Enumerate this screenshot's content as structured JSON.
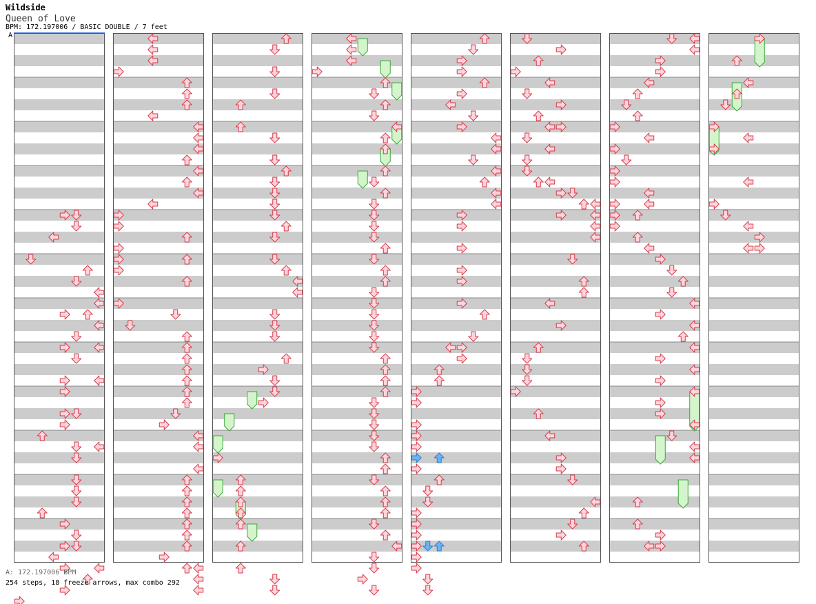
{
  "header": {
    "title": "Wildside",
    "subtitle": "Queen of Love",
    "meta": "BPM: 172.197006 / BASIC DOUBLE / 7 feet",
    "bpm_marker": "A"
  },
  "footer": {
    "bpm_line": "A: 172.197006 BPM",
    "stats": "254 steps, 18 freeze arrows, max combo 292"
  },
  "chart_data": {
    "type": "step-chart",
    "mode": "BASIC DOUBLE",
    "bpm": 172.197006,
    "difficulty_feet": 7,
    "lanes": [
      "P1-left",
      "P1-down",
      "P1-up",
      "P1-right",
      "P2-left",
      "P2-down",
      "P2-up",
      "P2-right"
    ],
    "columns": 8,
    "measures_per_column": 12,
    "rows_per_measure": 4,
    "steps": 254,
    "freeze_arrows": 18,
    "max_combo": 292,
    "colors": {
      "note_fill": "#ffd5dc",
      "note_stroke": "#d43a4a",
      "freeze_fill": "#d4f5cc",
      "freeze_stroke": "#3aa83a",
      "blue_fill": "#6cb3f0",
      "blue_stroke": "#2f7ec8",
      "stripe": "#cccccc",
      "border": "#555555"
    },
    "notes": [
      [
        [
          16,
          4
        ],
        [
          16,
          5
        ],
        [
          17,
          5
        ],
        [
          18,
          3
        ],
        [
          20,
          1
        ],
        [
          21,
          6
        ],
        [
          22,
          5
        ],
        [
          23,
          7
        ],
        [
          24,
          7
        ],
        [
          25,
          4
        ],
        [
          25,
          6
        ],
        [
          26,
          7
        ],
        [
          27,
          5
        ],
        [
          28,
          4
        ],
        [
          28,
          7
        ],
        [
          29,
          5
        ],
        [
          31,
          4
        ],
        [
          31,
          7
        ],
        [
          32,
          4
        ],
        [
          34,
          4
        ],
        [
          34,
          5
        ],
        [
          35,
          4
        ],
        [
          36,
          2
        ],
        [
          37,
          5
        ],
        [
          37,
          7
        ],
        [
          38,
          5
        ],
        [
          40,
          5
        ],
        [
          41,
          5
        ],
        [
          42,
          5
        ],
        [
          43,
          2
        ],
        [
          44,
          4
        ],
        [
          45,
          5
        ],
        [
          46,
          4
        ],
        [
          46,
          5
        ],
        [
          47,
          3
        ],
        [
          48,
          4
        ],
        [
          48,
          7
        ],
        [
          49,
          6
        ],
        [
          50,
          4
        ],
        [
          51,
          0
        ]
      ],
      [
        [
          0,
          3
        ],
        [
          1,
          3
        ],
        [
          2,
          3
        ],
        [
          3,
          0
        ],
        [
          4,
          6
        ],
        [
          5,
          6
        ],
        [
          6,
          6
        ],
        [
          7,
          3
        ],
        [
          8,
          7
        ],
        [
          9,
          7
        ],
        [
          10,
          7
        ],
        [
          11,
          6
        ],
        [
          12,
          7
        ],
        [
          13,
          6
        ],
        [
          14,
          7
        ],
        [
          15,
          3
        ],
        [
          16,
          0
        ],
        [
          17,
          0
        ],
        [
          18,
          6
        ],
        [
          19,
          0
        ],
        [
          20,
          0
        ],
        [
          20,
          6
        ],
        [
          21,
          0
        ],
        [
          22,
          6
        ],
        [
          24,
          0
        ],
        [
          25,
          5
        ],
        [
          26,
          1
        ],
        [
          27,
          6
        ],
        [
          28,
          6
        ],
        [
          29,
          6
        ],
        [
          30,
          6
        ],
        [
          31,
          6
        ],
        [
          32,
          6
        ],
        [
          33,
          6
        ],
        [
          34,
          5
        ],
        [
          35,
          4
        ],
        [
          36,
          7
        ],
        [
          37,
          7
        ],
        [
          39,
          7
        ],
        [
          40,
          6
        ],
        [
          41,
          6
        ],
        [
          42,
          6
        ],
        [
          43,
          6
        ],
        [
          44,
          6
        ],
        [
          45,
          6
        ],
        [
          46,
          6
        ],
        [
          47,
          4
        ],
        [
          48,
          6
        ],
        [
          48,
          7
        ],
        [
          49,
          7
        ],
        [
          50,
          7
        ]
      ],
      [
        [
          0,
          6
        ],
        [
          1,
          5
        ],
        [
          3,
          5
        ],
        [
          5,
          5
        ],
        [
          6,
          2
        ],
        [
          8,
          2
        ],
        [
          9,
          5
        ],
        [
          11,
          5
        ],
        [
          12,
          6
        ],
        [
          13,
          5
        ],
        [
          14,
          5
        ],
        [
          15,
          5
        ],
        [
          16,
          5
        ],
        [
          17,
          6
        ],
        [
          18,
          5
        ],
        [
          20,
          5
        ],
        [
          21,
          6
        ],
        [
          22,
          7
        ],
        [
          23,
          7
        ],
        [
          25,
          5
        ],
        [
          26,
          5
        ],
        [
          27,
          5
        ],
        [
          29,
          6
        ],
        [
          30,
          4
        ],
        [
          31,
          5
        ],
        [
          32,
          5
        ],
        [
          33,
          4
        ],
        [
          38,
          0
        ],
        [
          40,
          2
        ],
        [
          41,
          2
        ],
        [
          42,
          2
        ],
        [
          43,
          2
        ],
        [
          44,
          2
        ],
        [
          46,
          2
        ],
        [
          48,
          2
        ],
        [
          49,
          5
        ],
        [
          50,
          5
        ]
      ],
      [
        [
          0,
          3
        ],
        [
          1,
          3
        ],
        [
          2,
          3
        ],
        [
          3,
          0
        ],
        [
          4,
          6
        ],
        [
          5,
          5
        ],
        [
          6,
          6
        ],
        [
          7,
          5
        ],
        [
          8,
          7
        ],
        [
          9,
          6
        ],
        [
          10,
          6
        ],
        [
          12,
          6
        ],
        [
          13,
          5
        ],
        [
          14,
          6
        ],
        [
          15,
          5
        ],
        [
          16,
          5
        ],
        [
          17,
          5
        ],
        [
          18,
          5
        ],
        [
          19,
          6
        ],
        [
          20,
          5
        ],
        [
          21,
          6
        ],
        [
          22,
          6
        ],
        [
          23,
          5
        ],
        [
          24,
          5
        ],
        [
          25,
          5
        ],
        [
          26,
          5
        ],
        [
          27,
          5
        ],
        [
          28,
          5
        ],
        [
          29,
          6
        ],
        [
          30,
          6
        ],
        [
          31,
          6
        ],
        [
          32,
          6
        ],
        [
          33,
          5
        ],
        [
          34,
          5
        ],
        [
          35,
          5
        ],
        [
          36,
          5
        ],
        [
          37,
          5
        ],
        [
          38,
          6
        ],
        [
          39,
          6
        ],
        [
          40,
          5
        ],
        [
          41,
          6
        ],
        [
          42,
          6
        ],
        [
          43,
          6
        ],
        [
          44,
          5
        ],
        [
          45,
          6
        ],
        [
          46,
          7
        ],
        [
          47,
          5
        ],
        [
          48,
          5
        ],
        [
          49,
          4
        ],
        [
          50,
          5
        ]
      ],
      [
        [
          0,
          6
        ],
        [
          1,
          5
        ],
        [
          2,
          4
        ],
        [
          3,
          4
        ],
        [
          4,
          6
        ],
        [
          5,
          4
        ],
        [
          6,
          3
        ],
        [
          7,
          5
        ],
        [
          8,
          4
        ],
        [
          9,
          7
        ],
        [
          10,
          7
        ],
        [
          11,
          5
        ],
        [
          12,
          7
        ],
        [
          13,
          6
        ],
        [
          14,
          7
        ],
        [
          15,
          7
        ],
        [
          16,
          4
        ],
        [
          17,
          4
        ],
        [
          19,
          4
        ],
        [
          21,
          4
        ],
        [
          22,
          4
        ],
        [
          24,
          4
        ],
        [
          25,
          6
        ],
        [
          27,
          5
        ],
        [
          28,
          3
        ],
        [
          28,
          4
        ],
        [
          29,
          4
        ],
        [
          30,
          2
        ],
        [
          31,
          2
        ],
        [
          32,
          0
        ],
        [
          33,
          0
        ],
        [
          35,
          0
        ],
        [
          36,
          0
        ],
        [
          37,
          0
        ],
        [
          39,
          0
        ],
        [
          40,
          2
        ],
        [
          41,
          1
        ],
        [
          42,
          1
        ],
        [
          43,
          0
        ],
        [
          44,
          0
        ],
        [
          45,
          0
        ],
        [
          46,
          0
        ],
        [
          47,
          0
        ],
        [
          48,
          0
        ],
        [
          49,
          1
        ],
        [
          50,
          1
        ]
      ],
      [
        [
          0,
          1
        ],
        [
          1,
          4
        ],
        [
          2,
          2
        ],
        [
          3,
          0
        ],
        [
          4,
          3
        ],
        [
          5,
          1
        ],
        [
          6,
          4
        ],
        [
          7,
          2
        ],
        [
          8,
          3
        ],
        [
          8,
          4
        ],
        [
          9,
          1
        ],
        [
          10,
          3
        ],
        [
          11,
          1
        ],
        [
          12,
          1
        ],
        [
          13,
          2
        ],
        [
          13,
          3
        ],
        [
          14,
          4
        ],
        [
          14,
          5
        ],
        [
          15,
          6
        ],
        [
          15,
          7
        ],
        [
          16,
          4
        ],
        [
          16,
          7
        ],
        [
          17,
          7
        ],
        [
          18,
          7
        ],
        [
          20,
          5
        ],
        [
          22,
          6
        ],
        [
          23,
          6
        ],
        [
          24,
          3
        ],
        [
          26,
          4
        ],
        [
          28,
          2
        ],
        [
          29,
          1
        ],
        [
          30,
          1
        ],
        [
          31,
          1
        ],
        [
          32,
          0
        ],
        [
          34,
          2
        ],
        [
          36,
          3
        ],
        [
          38,
          4
        ],
        [
          39,
          4
        ],
        [
          40,
          5
        ],
        [
          42,
          7
        ],
        [
          43,
          6
        ],
        [
          44,
          5
        ],
        [
          45,
          4
        ],
        [
          46,
          6
        ]
      ],
      [
        [
          0,
          5
        ],
        [
          0,
          7
        ],
        [
          1,
          7
        ],
        [
          2,
          4
        ],
        [
          3,
          4
        ],
        [
          4,
          3
        ],
        [
          5,
          2
        ],
        [
          6,
          1
        ],
        [
          7,
          2
        ],
        [
          8,
          0
        ],
        [
          9,
          3
        ],
        [
          10,
          0
        ],
        [
          11,
          1
        ],
        [
          12,
          0
        ],
        [
          13,
          0
        ],
        [
          14,
          3
        ],
        [
          15,
          0
        ],
        [
          15,
          3
        ],
        [
          16,
          0
        ],
        [
          16,
          2
        ],
        [
          17,
          0
        ],
        [
          18,
          2
        ],
        [
          19,
          3
        ],
        [
          20,
          4
        ],
        [
          21,
          5
        ],
        [
          22,
          6
        ],
        [
          23,
          5
        ],
        [
          24,
          7
        ],
        [
          25,
          4
        ],
        [
          26,
          7
        ],
        [
          27,
          6
        ],
        [
          28,
          7
        ],
        [
          29,
          4
        ],
        [
          30,
          7
        ],
        [
          31,
          4
        ],
        [
          32,
          7
        ],
        [
          33,
          4
        ],
        [
          34,
          4
        ],
        [
          35,
          7
        ],
        [
          36,
          5
        ],
        [
          37,
          7
        ],
        [
          38,
          7
        ],
        [
          42,
          2
        ],
        [
          44,
          2
        ],
        [
          45,
          4
        ],
        [
          46,
          3
        ],
        [
          46,
          4
        ]
      ],
      [
        [
          0,
          4
        ],
        [
          2,
          2
        ],
        [
          4,
          3
        ],
        [
          5,
          2
        ],
        [
          6,
          1
        ],
        [
          8,
          0
        ],
        [
          9,
          3
        ],
        [
          10,
          0
        ],
        [
          13,
          3
        ],
        [
          15,
          0
        ],
        [
          16,
          1
        ],
        [
          17,
          3
        ],
        [
          18,
          4
        ],
        [
          19,
          3
        ],
        [
          19,
          4
        ]
      ]
    ],
    "blue_notes": [
      [],
      [],
      [],
      [],
      [
        [
          38,
          0
        ],
        [
          38,
          2
        ],
        [
          46,
          1
        ],
        [
          46,
          2
        ]
      ],
      [],
      [],
      []
    ],
    "freezes": [
      [],
      [],
      [
        [
          32,
          3,
          33
        ],
        [
          34,
          1,
          35
        ],
        [
          36,
          0,
          37
        ],
        [
          40,
          0,
          41
        ],
        [
          42,
          2,
          43
        ],
        [
          44,
          3,
          45
        ]
      ],
      [
        [
          0,
          4,
          1
        ],
        [
          2,
          6,
          3
        ],
        [
          4,
          7,
          5
        ],
        [
          8,
          7,
          9
        ],
        [
          10,
          6,
          11
        ],
        [
          12,
          4,
          13
        ]
      ],
      [],
      [],
      [
        [
          32,
          7,
          35
        ],
        [
          36,
          4,
          38
        ],
        [
          40,
          6,
          42
        ]
      ],
      [
        [
          0,
          4,
          2
        ],
        [
          4,
          2,
          6
        ],
        [
          8,
          0,
          10
        ]
      ]
    ]
  }
}
